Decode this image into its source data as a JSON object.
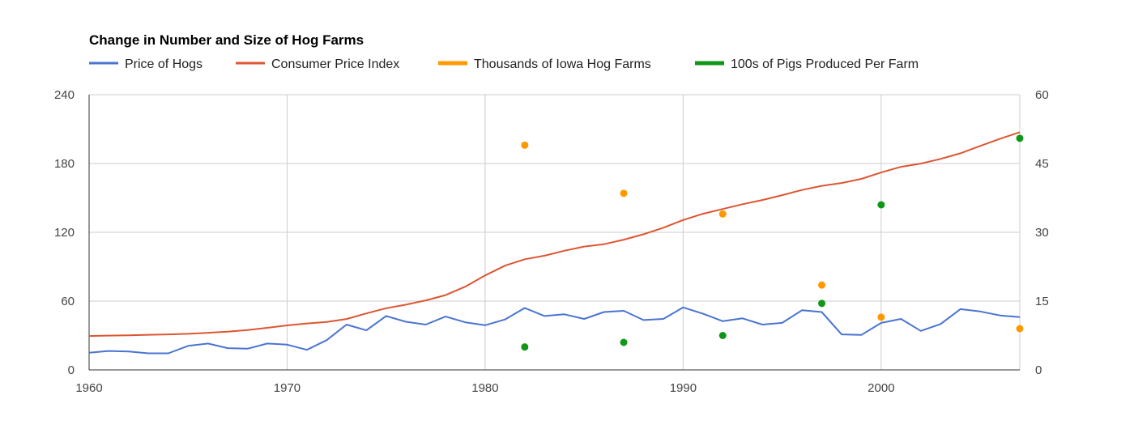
{
  "chart_data": {
    "type": "line",
    "title": "Change in Number and Size of Hog Farms",
    "legend_position": "top-left",
    "x_range": [
      1960,
      2007
    ],
    "x_ticks": [
      1960,
      1970,
      1980,
      1990,
      2000
    ],
    "x_tick_labels": [
      "1960",
      "1970",
      "1980",
      "1990",
      "2000"
    ],
    "y_left_range": [
      0,
      240
    ],
    "y_left_ticks": [
      0,
      60,
      120,
      180,
      240
    ],
    "y_left_tick_labels": [
      "0",
      "60",
      "120",
      "180",
      "240"
    ],
    "y_right_range": [
      0,
      60
    ],
    "y_right_ticks": [
      0,
      15,
      30,
      45,
      60
    ],
    "y_right_tick_labels": [
      "0",
      "15",
      "30",
      "45",
      "60"
    ],
    "grid": true,
    "series": [
      {
        "name": "Price of Hogs",
        "kind": "line",
        "axis": "left",
        "color": "#4a74d1",
        "x": [
          1960,
          1961,
          1962,
          1963,
          1964,
          1965,
          1966,
          1967,
          1968,
          1969,
          1970,
          1971,
          1972,
          1973,
          1974,
          1975,
          1976,
          1977,
          1978,
          1979,
          1980,
          1981,
          1982,
          1983,
          1984,
          1985,
          1986,
          1987,
          1988,
          1989,
          1990,
          1991,
          1992,
          1993,
          1994,
          1995,
          1996,
          1997,
          1998,
          1999,
          2000,
          2001,
          2002,
          2003,
          2004,
          2005,
          2006,
          2007
        ],
        "values": [
          15,
          16.5,
          16,
          14.5,
          14.5,
          21,
          23,
          19,
          18.5,
          23,
          22,
          17.5,
          26,
          39.5,
          34.5,
          47,
          42,
          39.5,
          46.5,
          41.5,
          39,
          44,
          54,
          47,
          48.5,
          44.5,
          50.5,
          51.5,
          43.5,
          44.5,
          54.5,
          49,
          42.5,
          45,
          39.5,
          41,
          52,
          50.5,
          31,
          30.5,
          41,
          44.5,
          34,
          40,
          53,
          51,
          47.5,
          46
        ]
      },
      {
        "name": "Consumer Price Index",
        "kind": "line",
        "axis": "left",
        "color": "#dc5632",
        "x": [
          1960,
          1961,
          1962,
          1963,
          1964,
          1965,
          1966,
          1967,
          1968,
          1969,
          1970,
          1971,
          1972,
          1973,
          1974,
          1975,
          1976,
          1977,
          1978,
          1979,
          1980,
          1981,
          1982,
          1983,
          1984,
          1985,
          1986,
          1987,
          1988,
          1989,
          1990,
          1991,
          1992,
          1993,
          1994,
          1995,
          1996,
          1997,
          1998,
          1999,
          2000,
          2001,
          2002,
          2003,
          2004,
          2005,
          2006,
          2007
        ],
        "values": [
          29.6,
          29.9,
          30.2,
          30.6,
          31.0,
          31.5,
          32.4,
          33.4,
          34.8,
          36.7,
          38.8,
          40.5,
          41.8,
          44.4,
          49.3,
          53.8,
          56.9,
          60.6,
          65.2,
          72.6,
          82.4,
          90.9,
          96.5,
          99.6,
          103.9,
          107.6,
          109.6,
          113.6,
          118.3,
          124.0,
          130.7,
          136.2,
          140.3,
          144.5,
          148.2,
          152.4,
          156.9,
          160.5,
          163.0,
          166.6,
          172.2,
          177.1,
          179.9,
          184.0,
          188.9,
          195.3,
          201.6,
          207.3
        ]
      },
      {
        "name": "Thousands of Iowa Hog Farms",
        "kind": "points",
        "axis": "right",
        "color": "#ff9900",
        "x": [
          1982,
          1987,
          1992,
          1997,
          2000,
          2007
        ],
        "values": [
          49,
          38.5,
          34,
          18.5,
          11.5,
          9
        ]
      },
      {
        "name": "100s of Pigs Produced Per Farm",
        "kind": "points",
        "axis": "right",
        "color": "#109618",
        "x": [
          1982,
          1987,
          1992,
          1997,
          2000,
          2007
        ],
        "values": [
          5,
          6,
          7.5,
          14.5,
          36,
          50.5
        ]
      }
    ]
  }
}
